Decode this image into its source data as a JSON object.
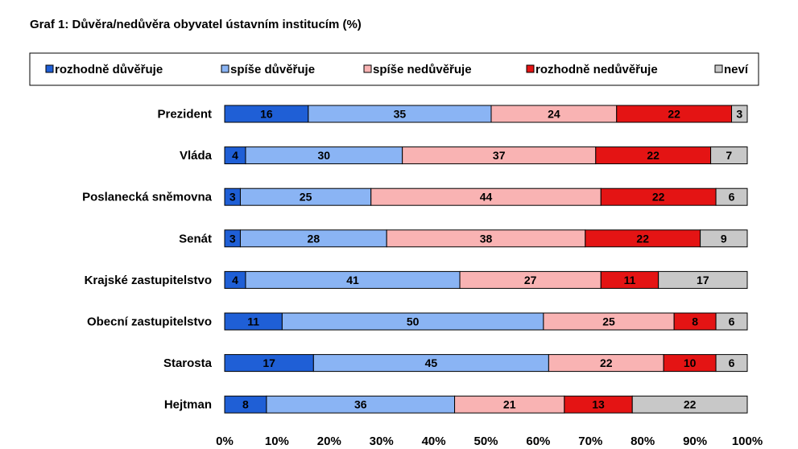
{
  "chart_data": {
    "type": "bar",
    "orientation": "horizontal",
    "stacked": true,
    "title": "Graf 1: Důvěra/nedůvěra obyvatel ústavním institucím (%)",
    "categories": [
      "Prezident",
      "Vláda",
      "Poslanecká sněmovna",
      "Senát",
      "Krajské zastupitelstvo",
      "Obecní zastupitelstvo",
      "Starosta",
      "Hejtman"
    ],
    "series": [
      {
        "name": "rozhodně důvěřuje",
        "color": "#1f5fd6",
        "values": [
          16,
          4,
          3,
          3,
          4,
          11,
          17,
          8
        ]
      },
      {
        "name": "spíše důvěřuje",
        "color": "#8ab4f4",
        "values": [
          35,
          30,
          25,
          28,
          41,
          50,
          45,
          36
        ]
      },
      {
        "name": "spíše nedůvěřuje",
        "color": "#f9b3b3",
        "values": [
          24,
          37,
          44,
          38,
          27,
          25,
          22,
          21
        ]
      },
      {
        "name": "rozhodně nedůvěřuje",
        "color": "#e41414",
        "values": [
          22,
          22,
          22,
          22,
          11,
          8,
          10,
          13
        ]
      },
      {
        "name": "neví",
        "color": "#c8c8c8",
        "values": [
          3,
          7,
          6,
          9,
          17,
          6,
          6,
          22
        ]
      }
    ],
    "xlim": [
      0,
      100
    ],
    "x_ticks": [
      "0%",
      "10%",
      "20%",
      "30%",
      "40%",
      "50%",
      "60%",
      "70%",
      "80%",
      "90%",
      "100%"
    ],
    "legend_position": "top",
    "grid": false
  }
}
